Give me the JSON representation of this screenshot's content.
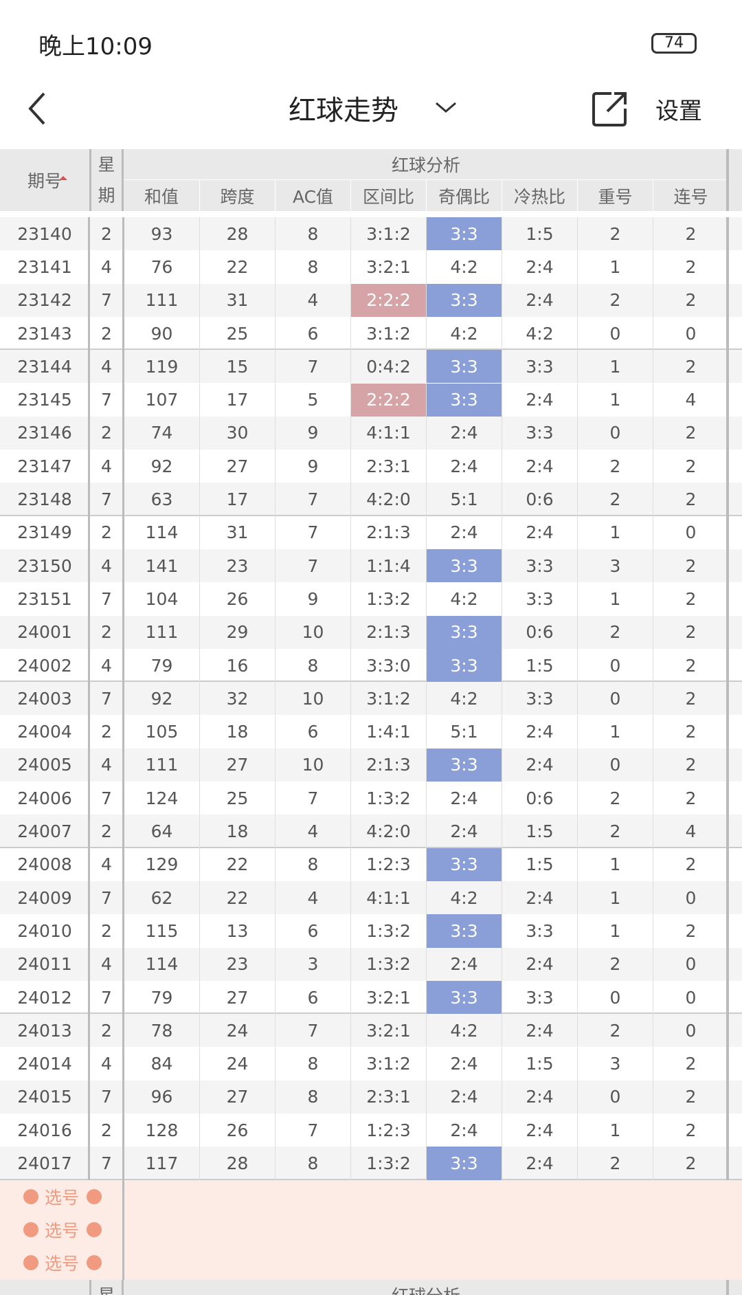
{
  "status_bar": {
    "time": "晚上10:09",
    "battery": "74"
  },
  "nav": {
    "title": "红球走势",
    "settings": "设置"
  },
  "table": {
    "header": {
      "issue": "期号",
      "weekday": "星期",
      "group": "红球分析",
      "columns": [
        "和值",
        "跨度",
        "AC值",
        "区间比",
        "奇偶比",
        "冷热比",
        "重号",
        "连号"
      ]
    },
    "highlights": [
      {
        "column": 5,
        "value": "2:2:2",
        "color": "#d6a3a6"
      },
      {
        "column": 6,
        "value": "3:3",
        "color": "#8a9fd8"
      }
    ],
    "rows": [
      [
        "23140",
        "2",
        "93",
        "28",
        "8",
        "3:1:2",
        "3:3",
        "1:5",
        "2",
        "2"
      ],
      [
        "23141",
        "4",
        "76",
        "22",
        "8",
        "3:2:1",
        "4:2",
        "2:4",
        "1",
        "2"
      ],
      [
        "23142",
        "7",
        "111",
        "31",
        "4",
        "2:2:2",
        "3:3",
        "2:4",
        "2",
        "2"
      ],
      [
        "23143",
        "2",
        "90",
        "25",
        "6",
        "3:1:2",
        "4:2",
        "4:2",
        "0",
        "0"
      ],
      [
        "23144",
        "4",
        "119",
        "15",
        "7",
        "0:4:2",
        "3:3",
        "3:3",
        "1",
        "2"
      ],
      [
        "23145",
        "7",
        "107",
        "17",
        "5",
        "2:2:2",
        "3:3",
        "2:4",
        "1",
        "4"
      ],
      [
        "23146",
        "2",
        "74",
        "30",
        "9",
        "4:1:1",
        "2:4",
        "3:3",
        "0",
        "2"
      ],
      [
        "23147",
        "4",
        "92",
        "27",
        "9",
        "2:3:1",
        "2:4",
        "2:4",
        "2",
        "2"
      ],
      [
        "23148",
        "7",
        "63",
        "17",
        "7",
        "4:2:0",
        "5:1",
        "0:6",
        "2",
        "2"
      ],
      [
        "23149",
        "2",
        "114",
        "31",
        "7",
        "2:1:3",
        "2:4",
        "2:4",
        "1",
        "0"
      ],
      [
        "23150",
        "4",
        "141",
        "23",
        "7",
        "1:1:4",
        "3:3",
        "3:3",
        "3",
        "2"
      ],
      [
        "23151",
        "7",
        "104",
        "26",
        "9",
        "1:3:2",
        "4:2",
        "3:3",
        "1",
        "2"
      ],
      [
        "24001",
        "2",
        "111",
        "29",
        "10",
        "2:1:3",
        "3:3",
        "0:6",
        "2",
        "2"
      ],
      [
        "24002",
        "4",
        "79",
        "16",
        "8",
        "3:3:0",
        "3:3",
        "1:5",
        "0",
        "2"
      ],
      [
        "24003",
        "7",
        "92",
        "32",
        "10",
        "3:1:2",
        "4:2",
        "3:3",
        "0",
        "2"
      ],
      [
        "24004",
        "2",
        "105",
        "18",
        "6",
        "1:4:1",
        "5:1",
        "2:4",
        "1",
        "2"
      ],
      [
        "24005",
        "4",
        "111",
        "27",
        "10",
        "2:1:3",
        "3:3",
        "2:4",
        "0",
        "2"
      ],
      [
        "24006",
        "7",
        "124",
        "25",
        "7",
        "1:3:2",
        "2:4",
        "0:6",
        "2",
        "2"
      ],
      [
        "24007",
        "2",
        "64",
        "18",
        "4",
        "4:2:0",
        "2:4",
        "1:5",
        "2",
        "4"
      ],
      [
        "24008",
        "4",
        "129",
        "22",
        "8",
        "1:2:3",
        "3:3",
        "1:5",
        "1",
        "2"
      ],
      [
        "24009",
        "7",
        "62",
        "22",
        "4",
        "4:1:1",
        "4:2",
        "2:4",
        "1",
        "0"
      ],
      [
        "24010",
        "2",
        "115",
        "13",
        "6",
        "1:3:2",
        "3:3",
        "3:3",
        "1",
        "2"
      ],
      [
        "24011",
        "4",
        "114",
        "23",
        "3",
        "1:3:2",
        "2:4",
        "2:4",
        "2",
        "0"
      ],
      [
        "24012",
        "7",
        "79",
        "27",
        "6",
        "3:2:1",
        "3:3",
        "3:3",
        "0",
        "0"
      ],
      [
        "24013",
        "2",
        "78",
        "24",
        "7",
        "3:2:1",
        "4:2",
        "2:4",
        "2",
        "0"
      ],
      [
        "24014",
        "4",
        "84",
        "24",
        "8",
        "3:1:2",
        "2:4",
        "1:5",
        "3",
        "2"
      ],
      [
        "24015",
        "7",
        "96",
        "27",
        "8",
        "2:3:1",
        "2:4",
        "2:4",
        "0",
        "2"
      ],
      [
        "24016",
        "2",
        "128",
        "26",
        "7",
        "1:2:3",
        "2:4",
        "2:4",
        "1",
        "2"
      ],
      [
        "24017",
        "7",
        "117",
        "28",
        "8",
        "1:3:2",
        "3:3",
        "2:4",
        "2",
        "2"
      ]
    ],
    "pick_rows": [
      "选号",
      "选号",
      "选号"
    ]
  }
}
